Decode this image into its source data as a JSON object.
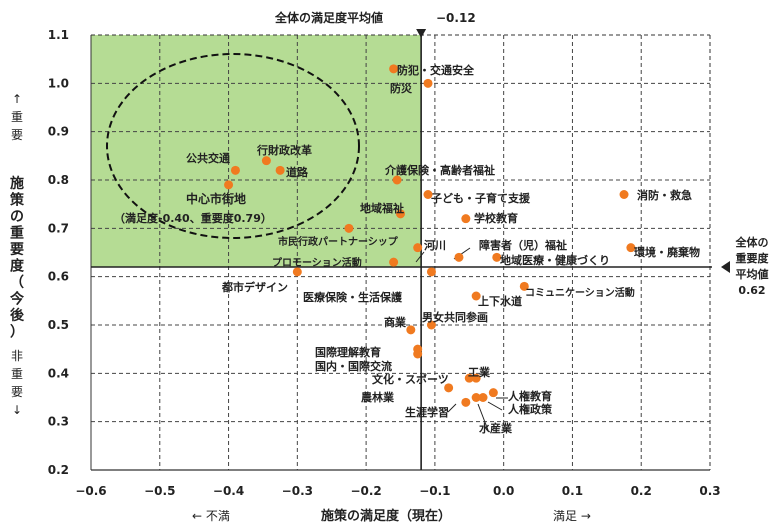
{
  "chart_data": {
    "type": "scatter",
    "title": "",
    "xlabel": "施策の満足度（現在）",
    "ylabel": "施策の重要度（今後）",
    "xlim": [
      -0.6,
      0.3
    ],
    "ylim": [
      0.2,
      1.1
    ],
    "xticks": [
      "−0.6",
      "−0.5",
      "−0.4",
      "−0.3",
      "−0.2",
      "−0.1",
      "0.0",
      "0.1",
      "0.2",
      "0.3"
    ],
    "yticks": [
      "0.2",
      "0.3",
      "0.4",
      "0.5",
      "0.6",
      "0.7",
      "0.8",
      "0.9",
      "1.0",
      "1.1"
    ],
    "grid": true,
    "x_axis_left_label": "←  不満",
    "x_axis_right_label": "満足  →",
    "y_axis_top_label": "↑\n重\n要",
    "y_axis_bottom_label": "非\n重\n要\n↓",
    "satisfaction_average": {
      "label": "全体の満足度平均値",
      "value": "−0.12",
      "x": -0.12
    },
    "importance_average": {
      "label_lines": [
        "全体の",
        "重要度",
        "平均値",
        "0.62"
      ],
      "y": 0.62
    },
    "highlight_region": {
      "x": [
        -0.6,
        -0.12
      ],
      "y": [
        0.62,
        1.1
      ],
      "color": "#b5dc94"
    },
    "highlight_annotation": [
      "中心市街地",
      "（満足度-0.40、重要度0.79）"
    ],
    "colors": {
      "point": "#f07a20",
      "highlight": "#b5dc94",
      "grid": "#444444"
    },
    "points": [
      {
        "label": "防犯・交通安全",
        "x": -0.16,
        "y": 1.03
      },
      {
        "label": "防災",
        "x": -0.11,
        "y": 1.0
      },
      {
        "label": "行財政改革",
        "x": -0.345,
        "y": 0.84
      },
      {
        "label": "公共交通",
        "x": -0.39,
        "y": 0.82
      },
      {
        "label": "道路",
        "x": -0.325,
        "y": 0.82
      },
      {
        "label": "中心市街地",
        "x": -0.4,
        "y": 0.79
      },
      {
        "label": "介護保険・高齢者福祉",
        "x": -0.155,
        "y": 0.8
      },
      {
        "label": "子ども・子育て支援",
        "x": -0.11,
        "y": 0.77
      },
      {
        "label": "消防・救急",
        "x": 0.175,
        "y": 0.77
      },
      {
        "label": "地域福祉",
        "x": -0.15,
        "y": 0.73
      },
      {
        "label": "学校教育",
        "x": -0.055,
        "y": 0.72
      },
      {
        "label": "市民行政パートナーシップ",
        "x": -0.225,
        "y": 0.7
      },
      {
        "label": "河川",
        "x": -0.125,
        "y": 0.66
      },
      {
        "label": "障害者（児）福祉",
        "x": -0.065,
        "y": 0.64
      },
      {
        "label": "地域医療・健康づくり",
        "x": -0.01,
        "y": 0.64
      },
      {
        "label": "環境・廃棄物",
        "x": 0.185,
        "y": 0.66
      },
      {
        "label": "プロモーション活動",
        "x": -0.16,
        "y": 0.63
      },
      {
        "label": "都市デザイン",
        "x": -0.3,
        "y": 0.61
      },
      {
        "label": "医療保険・生活保護",
        "x": -0.105,
        "y": 0.61
      },
      {
        "label": "コミュニケーション活動",
        "x": 0.03,
        "y": 0.58
      },
      {
        "label": "上下水道",
        "x": -0.04,
        "y": 0.56
      },
      {
        "label": "男女共同参画",
        "x": -0.105,
        "y": 0.5
      },
      {
        "label": "商業",
        "x": -0.135,
        "y": 0.49
      },
      {
        "label": "国際理解教育",
        "x": -0.125,
        "y": 0.45
      },
      {
        "label": "国内・国際交流",
        "x": -0.125,
        "y": 0.44
      },
      {
        "label": "文化・スポーツ",
        "x": -0.05,
        "y": 0.39
      },
      {
        "label": "工業",
        "x": -0.04,
        "y": 0.39
      },
      {
        "label": "農林業",
        "x": -0.08,
        "y": 0.37
      },
      {
        "label": "人権教育",
        "x": -0.015,
        "y": 0.36
      },
      {
        "label": "人権政策",
        "x": -0.03,
        "y": 0.35
      },
      {
        "label": "生涯学習",
        "x": -0.055,
        "y": 0.34
      },
      {
        "label": "水産業",
        "x": -0.04,
        "y": 0.35
      }
    ]
  }
}
